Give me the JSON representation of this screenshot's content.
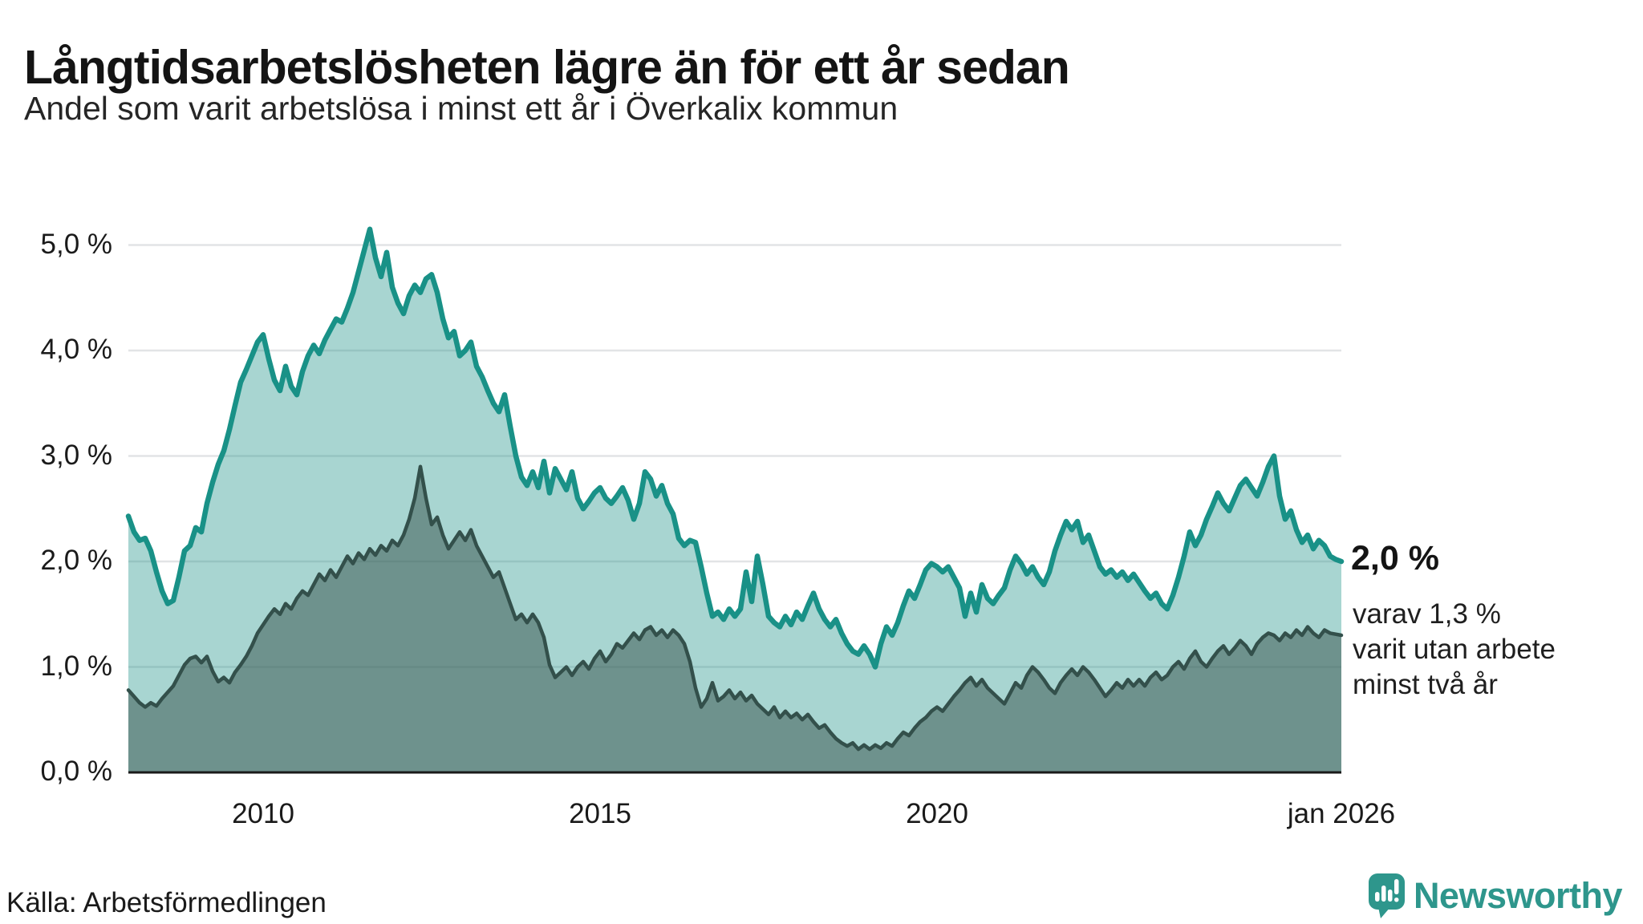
{
  "header": {
    "title": "Långtidsarbetslösheten lägre än för ett år sedan",
    "subtitle": "Andel som varit arbetslösa i minst ett år i Överkalix kommun"
  },
  "annotation": {
    "value_label": "2,0 %",
    "note_lines": [
      "varav 1,3 %",
      "varit utan arbete",
      "minst två år"
    ]
  },
  "footer": {
    "source": "Källa: Arbetsförmedlingen",
    "logo_text": "Newsworthy"
  },
  "colors": {
    "brand_teal": "#2e968c",
    "grid": "#e2e4e6",
    "axis_line": "#1a1a1a",
    "series1_line": "#199187",
    "series1_fill": "rgba(25,145,135,0.38)",
    "series2_line": "#33504b",
    "series2_fill": "rgba(58,84,79,0.52)"
  },
  "chart_data": {
    "type": "area",
    "title": "Långtidsarbetslösheten lägre än för ett år sedan",
    "subtitle": "Andel som varit arbetslösa i minst ett år i Överkalix kommun",
    "source": "Källa: Arbetsförmedlingen",
    "x_start_year": 2008.0,
    "x_end_year": 2026.0,
    "x_step_months": 1,
    "ylim": [
      0,
      5.3
    ],
    "grid": true,
    "legend_position": "annotated-at-line-end",
    "y_ticks": [
      {
        "value": 5,
        "label": "5,0 %"
      },
      {
        "value": 4,
        "label": "4,0 %"
      },
      {
        "value": 3,
        "label": "3,0 %"
      },
      {
        "value": 2,
        "label": "2,0 %"
      },
      {
        "value": 1,
        "label": "1,0 %"
      },
      {
        "value": 0,
        "label": "0,0 %"
      }
    ],
    "x_ticks": [
      {
        "year": 2010,
        "label": "2010"
      },
      {
        "year": 2015,
        "label": "2015"
      },
      {
        "year": 2020,
        "label": "2020"
      },
      {
        "year": 2026,
        "label": "jan 2026"
      }
    ],
    "series": [
      {
        "name": "Arbetslösa minst ett år",
        "end_value_label": "2,0 %",
        "line_color": "#199187",
        "fill_color": "rgba(25,145,135,0.38)",
        "stroke_width": 6.5,
        "values": [
          2.43,
          2.28,
          2.2,
          2.22,
          2.1,
          1.9,
          1.72,
          1.6,
          1.63,
          1.85,
          2.1,
          2.15,
          2.32,
          2.28,
          2.55,
          2.75,
          2.92,
          3.05,
          3.25,
          3.48,
          3.7,
          3.82,
          3.95,
          4.08,
          4.15,
          3.92,
          3.72,
          3.62,
          3.85,
          3.66,
          3.58,
          3.8,
          3.95,
          4.05,
          3.97,
          4.1,
          4.2,
          4.3,
          4.27,
          4.4,
          4.55,
          4.75,
          4.95,
          5.15,
          4.88,
          4.7,
          4.93,
          4.6,
          4.45,
          4.35,
          4.52,
          4.62,
          4.55,
          4.68,
          4.72,
          4.55,
          4.3,
          4.12,
          4.18,
          3.95,
          4.0,
          4.08,
          3.85,
          3.75,
          3.62,
          3.5,
          3.42,
          3.58,
          3.28,
          3.0,
          2.8,
          2.72,
          2.85,
          2.7,
          2.95,
          2.65,
          2.88,
          2.78,
          2.68,
          2.85,
          2.6,
          2.5,
          2.57,
          2.65,
          2.7,
          2.6,
          2.55,
          2.62,
          2.7,
          2.58,
          2.4,
          2.55,
          2.85,
          2.78,
          2.62,
          2.72,
          2.55,
          2.45,
          2.22,
          2.15,
          2.2,
          2.18,
          1.95,
          1.7,
          1.48,
          1.52,
          1.45,
          1.55,
          1.48,
          1.55,
          1.9,
          1.62,
          2.05,
          1.78,
          1.48,
          1.42,
          1.38,
          1.48,
          1.4,
          1.52,
          1.45,
          1.58,
          1.7,
          1.55,
          1.45,
          1.38,
          1.45,
          1.32,
          1.22,
          1.15,
          1.12,
          1.2,
          1.12,
          1.0,
          1.22,
          1.38,
          1.3,
          1.42,
          1.58,
          1.72,
          1.65,
          1.78,
          1.92,
          1.98,
          1.95,
          1.9,
          1.95,
          1.85,
          1.75,
          1.48,
          1.7,
          1.52,
          1.78,
          1.65,
          1.6,
          1.68,
          1.75,
          1.92,
          2.05,
          1.98,
          1.88,
          1.95,
          1.85,
          1.78,
          1.9,
          2.1,
          2.25,
          2.38,
          2.3,
          2.38,
          2.18,
          2.25,
          2.1,
          1.95,
          1.88,
          1.92,
          1.85,
          1.9,
          1.82,
          1.88,
          1.8,
          1.72,
          1.65,
          1.7,
          1.6,
          1.55,
          1.68,
          1.85,
          2.05,
          2.28,
          2.15,
          2.25,
          2.4,
          2.52,
          2.65,
          2.55,
          2.48,
          2.6,
          2.72,
          2.78,
          2.7,
          2.62,
          2.75,
          2.9,
          3.0,
          2.62,
          2.4,
          2.48,
          2.3,
          2.18,
          2.25,
          2.12,
          2.2,
          2.15,
          2.05,
          2.02,
          2.0
        ]
      },
      {
        "name": "Arbetslösa minst två år",
        "end_value_label": "varav 1,3 % varit utan arbete minst två år",
        "line_color": "#33504b",
        "fill_color": "rgba(58,84,79,0.52)",
        "stroke_width": 4.5,
        "values": [
          0.78,
          0.72,
          0.66,
          0.62,
          0.66,
          0.63,
          0.7,
          0.76,
          0.82,
          0.92,
          1.02,
          1.08,
          1.1,
          1.04,
          1.1,
          0.96,
          0.86,
          0.9,
          0.85,
          0.95,
          1.02,
          1.1,
          1.2,
          1.32,
          1.4,
          1.48,
          1.55,
          1.5,
          1.6,
          1.55,
          1.65,
          1.72,
          1.68,
          1.78,
          1.88,
          1.82,
          1.92,
          1.85,
          1.95,
          2.05,
          1.98,
          2.08,
          2.02,
          2.12,
          2.06,
          2.15,
          2.1,
          2.2,
          2.15,
          2.25,
          2.4,
          2.6,
          2.9,
          2.6,
          2.35,
          2.42,
          2.25,
          2.12,
          2.2,
          2.28,
          2.2,
          2.3,
          2.15,
          2.05,
          1.95,
          1.85,
          1.9,
          1.75,
          1.6,
          1.45,
          1.5,
          1.42,
          1.5,
          1.42,
          1.28,
          1.02,
          0.9,
          0.95,
          1.0,
          0.92,
          1.0,
          1.05,
          0.98,
          1.08,
          1.15,
          1.05,
          1.12,
          1.22,
          1.18,
          1.25,
          1.32,
          1.26,
          1.35,
          1.38,
          1.3,
          1.35,
          1.28,
          1.35,
          1.3,
          1.22,
          1.05,
          0.8,
          0.62,
          0.7,
          0.85,
          0.68,
          0.72,
          0.78,
          0.7,
          0.76,
          0.68,
          0.73,
          0.65,
          0.6,
          0.55,
          0.62,
          0.52,
          0.58,
          0.52,
          0.56,
          0.5,
          0.55,
          0.48,
          0.42,
          0.45,
          0.38,
          0.32,
          0.28,
          0.25,
          0.28,
          0.22,
          0.26,
          0.22,
          0.26,
          0.23,
          0.28,
          0.25,
          0.32,
          0.38,
          0.35,
          0.42,
          0.48,
          0.52,
          0.58,
          0.62,
          0.58,
          0.65,
          0.72,
          0.78,
          0.85,
          0.9,
          0.82,
          0.88,
          0.8,
          0.75,
          0.7,
          0.65,
          0.75,
          0.85,
          0.8,
          0.92,
          1.0,
          0.95,
          0.88,
          0.8,
          0.75,
          0.85,
          0.92,
          0.98,
          0.92,
          1.0,
          0.95,
          0.88,
          0.8,
          0.72,
          0.78,
          0.85,
          0.8,
          0.88,
          0.82,
          0.88,
          0.82,
          0.9,
          0.95,
          0.88,
          0.92,
          1.0,
          1.05,
          0.98,
          1.08,
          1.15,
          1.05,
          1.0,
          1.08,
          1.15,
          1.2,
          1.12,
          1.18,
          1.25,
          1.2,
          1.12,
          1.22,
          1.28,
          1.32,
          1.3,
          1.25,
          1.32,
          1.28,
          1.35,
          1.3,
          1.38,
          1.32,
          1.28,
          1.35,
          1.32,
          1.31,
          1.3
        ]
      }
    ]
  }
}
